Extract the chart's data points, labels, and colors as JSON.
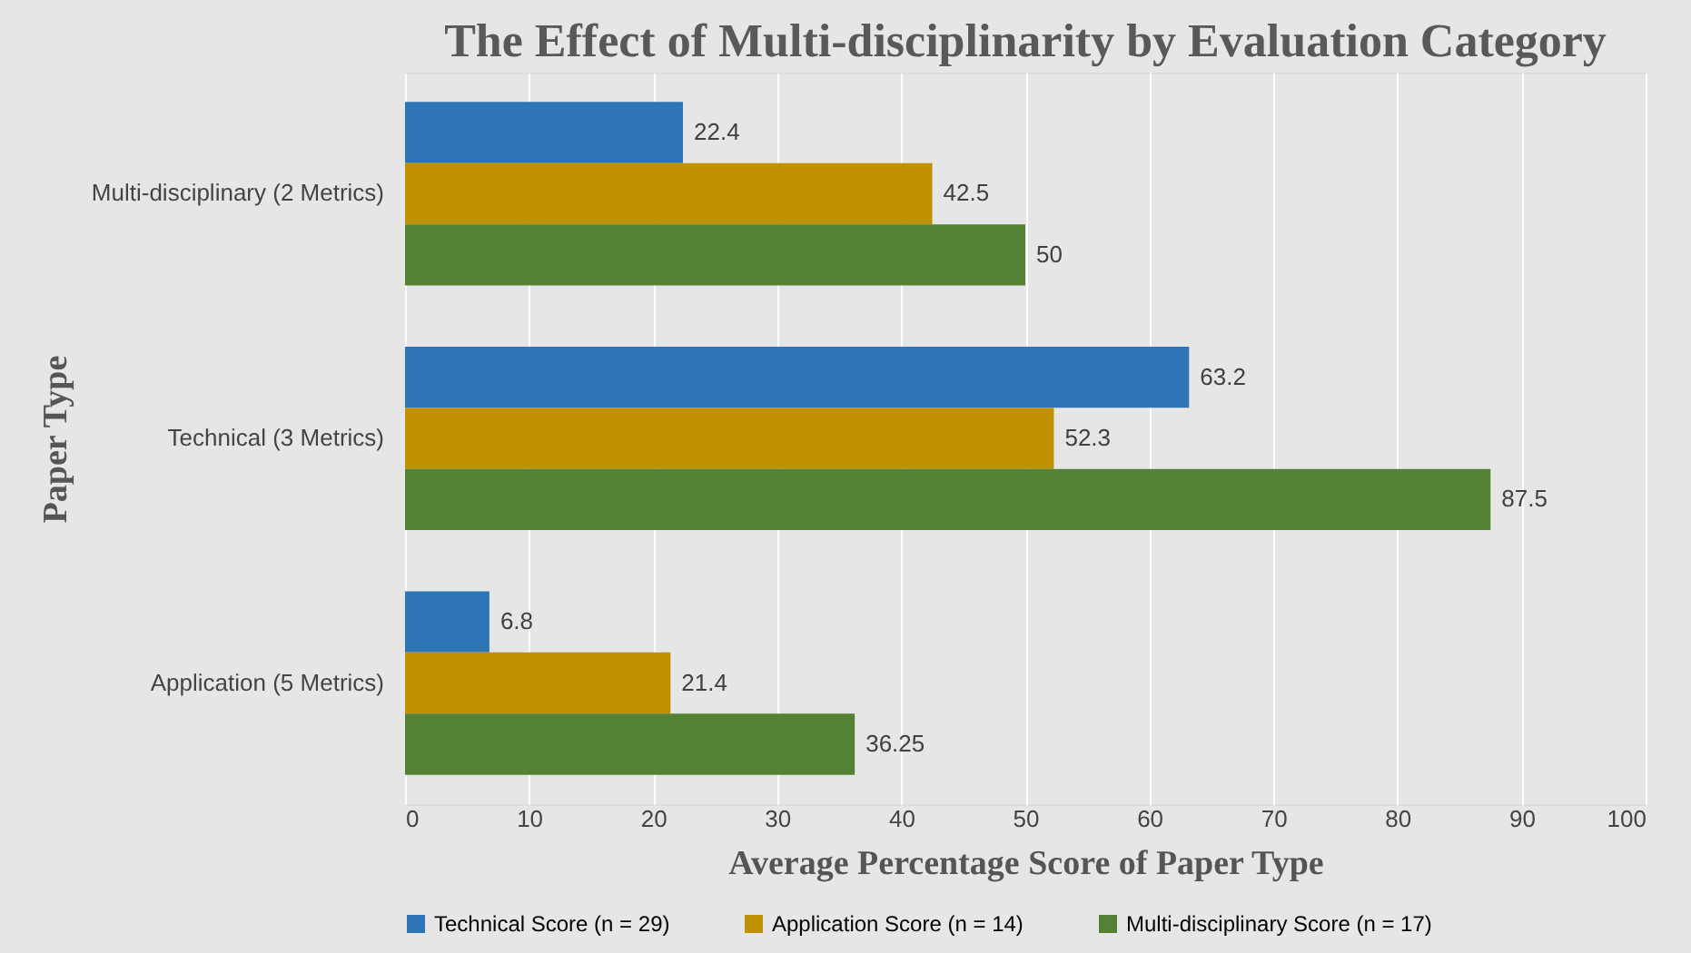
{
  "chart_data": {
    "type": "bar",
    "orientation": "horizontal",
    "title": "The Effect of Multi-disciplinarity by Evaluation Category",
    "xlabel": "Average Percentage Score of Paper Type",
    "ylabel": "Paper Type",
    "categories": [
      "Multi-disciplinary (2 Metrics)",
      "Technical (3 Metrics)",
      "Application (5 Metrics)"
    ],
    "series": [
      {
        "name": "Technical Score (n = 29)",
        "color": "#2e75b6",
        "values": [
          22.4,
          63.2,
          6.8
        ]
      },
      {
        "name": "Application Score (n = 14)",
        "color": "#bf9000",
        "values": [
          42.5,
          52.3,
          21.4
        ]
      },
      {
        "name": "Multi-disciplinary Score (n = 17)",
        "color": "#548235",
        "values": [
          50,
          87.5,
          36.25
        ]
      }
    ],
    "xlim": [
      0,
      100
    ],
    "xticks": [
      0,
      10,
      20,
      30,
      40,
      50,
      60,
      70,
      80,
      90,
      100
    ],
    "grid": "x",
    "legend": "bottom",
    "data_labels": true
  }
}
